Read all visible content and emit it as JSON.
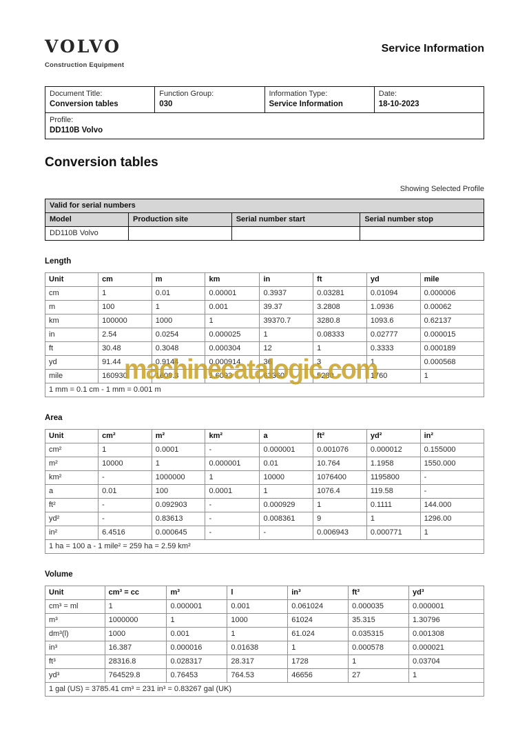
{
  "header": {
    "logo_text": "VOLVO",
    "logo_subtitle": "Construction Equipment",
    "page_title": "Service Information"
  },
  "doc_info": {
    "fields": [
      {
        "label": "Document Title:",
        "value": "Conversion tables"
      },
      {
        "label": "Function Group:",
        "value": "030"
      },
      {
        "label": "Information Type:",
        "value": "Service Information"
      },
      {
        "label": "Date:",
        "value": "18-10-2023"
      }
    ],
    "profile": {
      "label": "Profile:",
      "value": "DD110B Volvo"
    }
  },
  "title": "Conversion tables",
  "profile_note": "Showing Selected Profile",
  "serial_table": {
    "caption": "Valid for serial numbers",
    "headers": [
      "Model",
      "Production site",
      "Serial number start",
      "Serial number stop"
    ],
    "row": {
      "model": "DD110B Volvo",
      "production_site": "",
      "serial_start": "",
      "serial_stop": ""
    }
  },
  "watermark": {
    "text": "machinecatalogic.com",
    "color": "#C9A227"
  },
  "sections": [
    {
      "title": "Length",
      "headers": [
        "Unit",
        "cm",
        "m",
        "km",
        "in",
        "ft",
        "yd",
        "mile"
      ],
      "rows": [
        [
          "cm",
          "1",
          "0.01",
          "0.00001",
          "0.3937",
          "0.03281",
          "0.01094",
          "0.000006"
        ],
        [
          "m",
          "100",
          "1",
          "0.001",
          "39.37",
          "3.2808",
          "1.0936",
          "0.00062"
        ],
        [
          "km",
          "100000",
          "1000",
          "1",
          "39370.7",
          "3280.8",
          "1093.6",
          "0.62137"
        ],
        [
          "in",
          "2.54",
          "0.0254",
          "0.000025",
          "1",
          "0.08333",
          "0.02777",
          "0.000015"
        ],
        [
          "ft",
          "30.48",
          "0.3048",
          "0.000304",
          "12",
          "1",
          "0.3333",
          "0.000189"
        ],
        [
          "yd",
          "91.44",
          "0.9144",
          "0.000914",
          "36",
          "3",
          "1",
          "0.000568"
        ],
        [
          "mile",
          "160930",
          "1609.3",
          "1.6093",
          "63360",
          "5280",
          "1760",
          "1"
        ]
      ],
      "footer": "1 mm = 0.1 cm - 1 mm = 0.001 m"
    },
    {
      "title": "Area",
      "headers": [
        "Unit",
        "cm²",
        "m²",
        "km²",
        "a",
        "ft²",
        "yd²",
        "in²"
      ],
      "rows": [
        [
          "cm²",
          "1",
          "0.0001",
          "-",
          "0.000001",
          "0.001076",
          "0.000012",
          "0.155000"
        ],
        [
          "m²",
          "10000",
          "1",
          "0.000001",
          "0.01",
          "10.764",
          "1.1958",
          "1550.000"
        ],
        [
          "km²",
          "-",
          "1000000",
          "1",
          "10000",
          "1076400",
          "1195800",
          "-"
        ],
        [
          "a",
          "0.01",
          "100",
          "0.0001",
          "1",
          "1076.4",
          "119.58",
          "-"
        ],
        [
          "ft²",
          "-",
          "0.092903",
          "-",
          "0.000929",
          "1",
          "0.1111",
          "144.000"
        ],
        [
          "yd²",
          "-",
          "0.83613",
          "-",
          "0.008361",
          "9",
          "1",
          "1296.00"
        ],
        [
          "in²",
          "6.4516",
          "0.000645",
          "-",
          "-",
          "0.006943",
          "0.000771",
          "1"
        ]
      ],
      "footer": "1 ha = 100 a - 1 mile² = 259 ha = 2.59 km²"
    },
    {
      "title": "Volume",
      "headers": [
        "Unit",
        "cm³ = cc",
        "m³",
        "l",
        "in³",
        "ft³",
        "yd³"
      ],
      "rows": [
        [
          "cm³ = ml",
          "1",
          "0.000001",
          "0.001",
          "0.061024",
          "0.000035",
          "0.000001"
        ],
        [
          "m³",
          "1000000",
          "1",
          "1000",
          "61024",
          "35.315",
          "1.30796"
        ],
        [
          "dm³(l)",
          "1000",
          "0.001",
          "1",
          "61.024",
          "0.035315",
          "0.001308"
        ],
        [
          "in³",
          "16.387",
          "0.000016",
          "0.01638",
          "1",
          "0.000578",
          "0.000021"
        ],
        [
          "ft³",
          "28316.8",
          "0.028317",
          "28.317",
          "1728",
          "1",
          "0.03704"
        ],
        [
          "yd³",
          "764529.8",
          "0.76453",
          "764.53",
          "46656",
          "27",
          "1"
        ]
      ],
      "footer": "1 gal (US) = 3785.41 cm³ = 231 in³ = 0.83267 gal (UK)"
    }
  ]
}
